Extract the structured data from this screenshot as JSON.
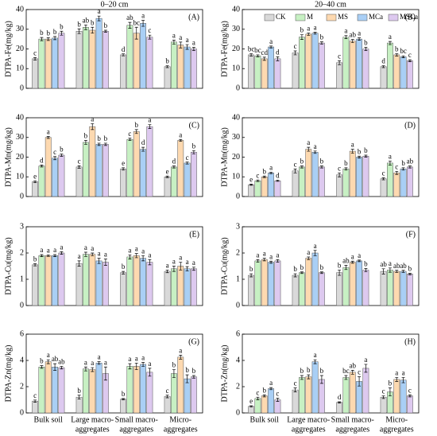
{
  "column_titles": [
    "0–20 cm",
    "20–40 cm"
  ],
  "chart_data": [
    {
      "type": "bar",
      "label": "(A)",
      "ylabel": "DTPA-Fe(mg/kg)",
      "ylim": [
        0,
        40
      ],
      "yticks": [
        0,
        10,
        20,
        30,
        40
      ],
      "series": [
        {
          "color": "#d9d9d9",
          "values": [
            15,
            29,
            17,
            11
          ],
          "errors": [
            0.6,
            1.2,
            0.5,
            0.5
          ],
          "letters": [
            "c",
            "b",
            "d",
            "b"
          ]
        },
        {
          "color": "#c7f0c3",
          "values": [
            25,
            31,
            32,
            23.5
          ],
          "errors": [
            0.8,
            1.2,
            1.5,
            1
          ],
          "letters": [
            "b",
            "ab",
            "ab",
            "a"
          ]
        },
        {
          "color": "#fdd9b0",
          "values": [
            25,
            29.5,
            28,
            22
          ],
          "errors": [
            0.7,
            1.5,
            3,
            1.5
          ],
          "letters": [
            "b",
            "b",
            "bc",
            "a"
          ]
        },
        {
          "color": "#a9cff5",
          "values": [
            25.5,
            35.5,
            33,
            21
          ],
          "errors": [
            0.8,
            1.2,
            1.5,
            1.2
          ],
          "letters": [
            "b",
            "a",
            "a",
            "a"
          ]
        },
        {
          "color": "#ddc9ef",
          "values": [
            28,
            29,
            26,
            20
          ],
          "errors": [
            1,
            0.5,
            1,
            0.8
          ],
          "letters": [
            "b",
            "b",
            "c",
            "a"
          ]
        }
      ]
    },
    {
      "type": "bar",
      "label": "(B)",
      "ylabel": "DTPA-Fe(mg/kg)",
      "ylim": [
        0,
        40
      ],
      "yticks": [
        0,
        10,
        20,
        30,
        40
      ],
      "series": [
        {
          "name": "CK",
          "color": "#d9d9d9",
          "values": [
            17,
            18,
            13,
            11
          ],
          "errors": [
            0.6,
            1,
            1,
            0.5
          ],
          "letters": [
            "bc",
            "c",
            "c",
            "d"
          ]
        },
        {
          "name": "M",
          "color": "#c7f0c3",
          "values": [
            16.5,
            26,
            26,
            23
          ],
          "errors": [
            0.5,
            1.2,
            0.8,
            0.8
          ],
          "letters": [
            "bc",
            "b",
            "a",
            "a"
          ]
        },
        {
          "name": "MS",
          "color": "#fdd9b0",
          "values": [
            15,
            27.5,
            24,
            17
          ],
          "errors": [
            0.8,
            0.6,
            0.8,
            0.6
          ],
          "letters": [
            "cd",
            "a",
            "ab",
            "b"
          ]
        },
        {
          "name": "MCa",
          "color": "#a9cff5",
          "values": [
            21,
            28,
            25,
            16
          ],
          "errors": [
            0.5,
            0.5,
            0.6,
            0.5
          ],
          "letters": [
            "a",
            "a",
            "a",
            "bc"
          ]
        },
        {
          "name": "MSCa",
          "color": "#ddc9ef",
          "values": [
            15,
            23,
            20,
            14
          ],
          "errors": [
            1,
            0.6,
            0.8,
            0.5
          ],
          "letters": [
            "d",
            "b",
            "b",
            "c"
          ]
        }
      ]
    },
    {
      "type": "bar",
      "label": "(C)",
      "ylabel": "DTPA-Mn(mg/kg)",
      "ylim": [
        0,
        40
      ],
      "yticks": [
        0,
        10,
        20,
        30,
        40
      ],
      "series": [
        {
          "color": "#d9d9d9",
          "values": [
            7.5,
            15,
            14,
            10
          ],
          "errors": [
            0.5,
            0.6,
            0.6,
            0.4
          ],
          "letters": [
            "e",
            "c",
            "e",
            "e"
          ]
        },
        {
          "color": "#c7f0c3",
          "values": [
            15.5,
            27.5,
            29,
            15
          ],
          "errors": [
            0.5,
            1,
            0.6,
            0.5
          ],
          "letters": [
            "d",
            "b",
            "c",
            "d"
          ]
        },
        {
          "color": "#fdd9b0",
          "values": [
            30,
            35.5,
            33,
            28.5
          ],
          "errors": [
            0.5,
            1.5,
            1,
            0.5
          ],
          "letters": [
            "a",
            "a",
            "b",
            "a"
          ]
        },
        {
          "color": "#a9cff5",
          "values": [
            19.5,
            26.5,
            24,
            17
          ],
          "errors": [
            0.8,
            0.6,
            1,
            0.5
          ],
          "letters": [
            "c",
            "b",
            "d",
            "c"
          ]
        },
        {
          "color": "#ddc9ef",
          "values": [
            21,
            26.5,
            35.5,
            22.5
          ],
          "errors": [
            0.6,
            0.6,
            1,
            0.8
          ],
          "letters": [
            "b",
            "b",
            "a",
            "b"
          ]
        }
      ]
    },
    {
      "type": "bar",
      "label": "(D)",
      "ylabel": "DTPA-Mn(mg/kg)",
      "ylim": [
        0,
        40
      ],
      "yticks": [
        0,
        10,
        20,
        30,
        40
      ],
      "series": [
        {
          "color": "#d9d9d9",
          "values": [
            6,
            13,
            11,
            9
          ],
          "errors": [
            0.3,
            1,
            1,
            0.5
          ],
          "letters": [
            "e",
            "c",
            "c",
            "c"
          ]
        },
        {
          "color": "#c7f0c3",
          "values": [
            8,
            15,
            14,
            17
          ],
          "errors": [
            0.4,
            0.5,
            0.6,
            1
          ],
          "letters": [
            "c",
            "b",
            "b",
            "a"
          ]
        },
        {
          "color": "#fdd9b0",
          "values": [
            10,
            24,
            23,
            12
          ],
          "errors": [
            0.4,
            1,
            1,
            0.8
          ],
          "letters": [
            "b",
            "a",
            "a",
            "c"
          ]
        },
        {
          "color": "#a9cff5",
          "values": [
            12,
            22.5,
            20,
            14
          ],
          "errors": [
            0.4,
            0.6,
            0.5,
            0.6
          ],
          "letters": [
            "a",
            "a",
            "b",
            "b"
          ]
        },
        {
          "color": "#ddc9ef",
          "values": [
            8,
            15,
            20.5,
            15
          ],
          "errors": [
            0.3,
            0.5,
            0.5,
            0.5
          ],
          "letters": [
            "d",
            "b",
            "b",
            "ab"
          ]
        }
      ]
    },
    {
      "type": "bar",
      "label": "(E)",
      "ylabel": "DTPA-Cu(mg/kg)",
      "ylim": [
        0,
        3
      ],
      "yticks": [
        0,
        1,
        2,
        3
      ],
      "series": [
        {
          "color": "#d9d9d9",
          "values": [
            1.55,
            1.6,
            1.25,
            1.3
          ],
          "errors": [
            0.04,
            0.1,
            0.05,
            0.05
          ],
          "letters": [
            "b",
            "a",
            "b",
            "a"
          ]
        },
        {
          "color": "#c7f0c3",
          "values": [
            1.9,
            1.95,
            1.85,
            1.4
          ],
          "errors": [
            0.04,
            0.08,
            0.08,
            0.1
          ],
          "letters": [
            "a",
            "a",
            "a",
            "a"
          ]
        },
        {
          "color": "#fdd9b0",
          "values": [
            1.9,
            1.95,
            1.9,
            1.5
          ],
          "errors": [
            0.03,
            0.05,
            0.08,
            0.15
          ],
          "letters": [
            "a",
            "a",
            "a",
            "a"
          ]
        },
        {
          "color": "#a9cff5",
          "values": [
            1.9,
            1.7,
            1.8,
            1.4
          ],
          "errors": [
            0.04,
            0.1,
            0.1,
            0.08
          ],
          "letters": [
            "a",
            "a",
            "a",
            "a"
          ]
        },
        {
          "color": "#ddc9ef",
          "values": [
            2,
            1.65,
            1.65,
            1.4
          ],
          "errors": [
            0.05,
            0.12,
            0.1,
            0.06
          ],
          "letters": [
            "a",
            "a",
            "a",
            "a"
          ]
        }
      ]
    },
    {
      "type": "bar",
      "label": "(F)",
      "ylabel": "DTPA-Cu(mg/kg)",
      "ylim": [
        0,
        3
      ],
      "yticks": [
        0,
        1,
        2,
        3
      ],
      "series": [
        {
          "color": "#d9d9d9",
          "values": [
            1.15,
            1.15,
            1.25,
            1.3
          ],
          "errors": [
            0.06,
            0.06,
            0.1,
            0.1
          ],
          "letters": [
            "b",
            "b",
            "b",
            "ab"
          ]
        },
        {
          "color": "#c7f0c3",
          "values": [
            1.7,
            1.25,
            1.45,
            1.35
          ],
          "errors": [
            0.05,
            0.03,
            0.08,
            0.08
          ],
          "letters": [
            "a",
            "b",
            "ab",
            "a"
          ]
        },
        {
          "color": "#fdd9b0",
          "values": [
            1.75,
            1.8,
            1.65,
            1.3
          ],
          "errors": [
            0.05,
            0.05,
            0.04,
            0.04
          ],
          "letters": [
            "a",
            "a",
            "a",
            "ab"
          ]
        },
        {
          "color": "#a9cff5",
          "values": [
            1.65,
            2,
            1.7,
            1.3
          ],
          "errors": [
            0.04,
            0.1,
            0.03,
            0.04
          ],
          "letters": [
            "a",
            "a",
            "a",
            "ab"
          ]
        },
        {
          "color": "#ddc9ef",
          "values": [
            1.7,
            1.25,
            1.35,
            1.2
          ],
          "errors": [
            0.05,
            0.03,
            0.06,
            0.03
          ],
          "letters": [
            "a",
            "b",
            "b",
            "b"
          ]
        }
      ]
    },
    {
      "type": "bar",
      "label": "(G)",
      "ylabel": "DTPA-Zn(mg/kg)",
      "ylim": [
        0,
        6
      ],
      "yticks": [
        0,
        2,
        4,
        6
      ],
      "categories": [
        [
          "Bulk soil"
        ],
        [
          "Large macro-",
          "aggregates"
        ],
        [
          "Small macro-",
          "aggregates"
        ],
        [
          "Micro-",
          "aggregates"
        ]
      ],
      "series": [
        {
          "color": "#d9d9d9",
          "values": [
            0.9,
            1.2,
            1.05,
            1.25
          ],
          "errors": [
            0.08,
            0.15,
            0.05,
            0.1
          ],
          "letters": [
            "c",
            "b",
            "b",
            "c"
          ]
        },
        {
          "color": "#c7f0c3",
          "values": [
            3.5,
            3.35,
            3.55,
            3
          ],
          "errors": [
            0.1,
            0.15,
            0.2,
            0.3
          ],
          "letters": [
            "b",
            "a",
            "a",
            "b"
          ]
        },
        {
          "color": "#fdd9b0",
          "values": [
            3.9,
            3.3,
            3.55,
            4.25
          ],
          "errors": [
            0.15,
            0.15,
            0.25,
            0.15
          ],
          "letters": [
            "a",
            "a",
            "a",
            "a"
          ]
        },
        {
          "color": "#a9cff5",
          "values": [
            3.5,
            3.8,
            3.7,
            2.6
          ],
          "errors": [
            0.25,
            0.1,
            0.15,
            0.3
          ],
          "letters": [
            "ab",
            "a",
            "a",
            "b"
          ]
        },
        {
          "color": "#ddc9ef",
          "values": [
            3.45,
            3,
            3.1,
            2.75
          ],
          "errors": [
            0.1,
            0.5,
            0.3,
            0.1
          ],
          "letters": [
            "ab",
            "a",
            "a",
            "b"
          ]
        }
      ]
    },
    {
      "type": "bar",
      "label": "(H)",
      "ylabel": "DTPA-Zn(mg/kg)",
      "ylim": [
        0,
        6
      ],
      "yticks": [
        0,
        2,
        4,
        6
      ],
      "categories": [
        [
          "Bulk soil"
        ],
        [
          "Large macro-",
          "aggregates"
        ],
        [
          "Small macro-",
          "aggregates"
        ],
        [
          "Micro-",
          "aggregates"
        ]
      ],
      "series": [
        {
          "color": "#d9d9d9",
          "values": [
            0.5,
            1.75,
            0.8,
            1.2
          ],
          "errors": [
            0.05,
            0.15,
            0.05,
            0.1
          ],
          "letters": [
            "e",
            "c",
            "d",
            "c"
          ]
        },
        {
          "color": "#c7f0c3",
          "values": [
            1.1,
            2.7,
            2.7,
            1.6
          ],
          "errors": [
            0.1,
            0.15,
            0.15,
            0.3
          ],
          "letters": [
            "c",
            "b",
            "bc",
            "b"
          ]
        },
        {
          "color": "#fdd9b0",
          "values": [
            1.3,
            2.75,
            3.1,
            2.55
          ],
          "errors": [
            0.08,
            0.15,
            0.15,
            0.15
          ],
          "letters": [
            "b",
            "b",
            "ab",
            "a"
          ]
        },
        {
          "color": "#a9cff5",
          "values": [
            1.85,
            3.9,
            2.4,
            2.5
          ],
          "errors": [
            0.08,
            0.15,
            0.35,
            0.2
          ],
          "letters": [
            "a",
            "a",
            "c",
            "a"
          ]
        },
        {
          "color": "#ddc9ef",
          "values": [
            1,
            2.55,
            3.4,
            1.3
          ],
          "errors": [
            0.12,
            0.3,
            0.3,
            0.08
          ],
          "letters": [
            "c",
            "b",
            "a",
            "c"
          ]
        }
      ]
    }
  ]
}
